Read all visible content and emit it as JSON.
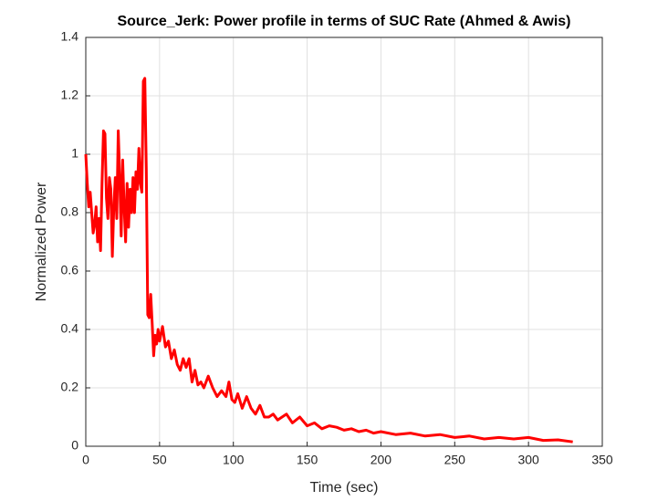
{
  "chart_data": {
    "type": "line",
    "title": "Source_Jerk: Power profile in terms of SUC Rate (Ahmed & Awis)",
    "xlabel": "Time (sec)",
    "ylabel": "Normalized Power",
    "xlim": [
      0,
      350
    ],
    "xticks": [
      0,
      50,
      100,
      150,
      200,
      250,
      300,
      350
    ],
    "ylim": [
      0,
      1.4
    ],
    "yticks": [
      0,
      0.2,
      0.4,
      0.6,
      0.8,
      1,
      1.2,
      1.4
    ],
    "grid": true,
    "x": [
      0,
      1,
      2,
      3,
      4,
      5,
      6,
      7,
      8,
      9,
      10,
      11,
      12,
      13,
      14,
      15,
      16,
      17,
      18,
      19,
      20,
      21,
      22,
      23,
      24,
      25,
      26,
      27,
      28,
      29,
      30,
      31,
      32,
      33,
      34,
      35,
      36,
      37,
      38,
      39,
      40,
      41,
      42,
      43,
      44,
      45,
      46,
      47,
      48,
      49,
      50,
      52,
      54,
      56,
      58,
      60,
      62,
      64,
      66,
      68,
      70,
      72,
      74,
      76,
      78,
      80,
      83,
      86,
      89,
      92,
      95,
      97,
      99,
      101,
      103,
      106,
      109,
      112,
      115,
      118,
      121,
      124,
      127,
      130,
      133,
      136,
      140,
      145,
      150,
      155,
      160,
      165,
      170,
      175,
      180,
      185,
      190,
      195,
      200,
      210,
      220,
      230,
      240,
      250,
      260,
      270,
      280,
      290,
      300,
      310,
      320,
      330
    ],
    "series": [
      {
        "color": "#ff0000",
        "values": [
          1.0,
          0.9,
          0.82,
          0.87,
          0.8,
          0.73,
          0.76,
          0.82,
          0.7,
          0.78,
          0.67,
          0.9,
          1.08,
          1.07,
          0.85,
          0.78,
          0.92,
          0.88,
          0.65,
          0.82,
          0.92,
          0.78,
          1.08,
          0.92,
          0.72,
          0.98,
          0.82,
          0.7,
          0.9,
          0.75,
          0.88,
          0.8,
          0.92,
          0.8,
          0.94,
          0.88,
          1.02,
          0.9,
          0.87,
          1.25,
          1.26,
          0.95,
          0.45,
          0.44,
          0.52,
          0.42,
          0.31,
          0.38,
          0.35,
          0.4,
          0.36,
          0.41,
          0.34,
          0.36,
          0.3,
          0.33,
          0.28,
          0.26,
          0.3,
          0.27,
          0.3,
          0.22,
          0.26,
          0.21,
          0.22,
          0.2,
          0.24,
          0.2,
          0.17,
          0.19,
          0.17,
          0.22,
          0.16,
          0.15,
          0.18,
          0.13,
          0.17,
          0.13,
          0.11,
          0.14,
          0.1,
          0.1,
          0.11,
          0.09,
          0.1,
          0.11,
          0.08,
          0.1,
          0.07,
          0.08,
          0.06,
          0.07,
          0.065,
          0.055,
          0.06,
          0.05,
          0.055,
          0.045,
          0.05,
          0.04,
          0.045,
          0.035,
          0.04,
          0.03,
          0.035,
          0.025,
          0.03,
          0.025,
          0.03,
          0.02,
          0.022,
          0.015
        ]
      }
    ]
  }
}
